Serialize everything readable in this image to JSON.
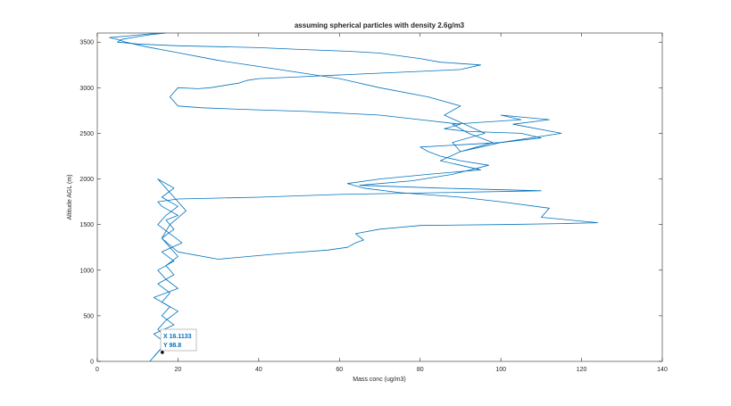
{
  "chart_data": {
    "type": "line",
    "title": "assuming spherical particles with density 2.6g/m3",
    "xlabel": "Mass conc (ug/m3)",
    "ylabel": "Altitude AGL (m)",
    "xlim": [
      0,
      140
    ],
    "ylim": [
      0,
      3600
    ],
    "xticks": [
      0,
      20,
      40,
      60,
      80,
      100,
      120,
      140
    ],
    "yticks": [
      0,
      500,
      1000,
      1500,
      2000,
      2500,
      3000,
      3500
    ],
    "grid": false,
    "line_color": "#0072BD",
    "series": [
      {
        "x": [
          13,
          15,
          17,
          14,
          19,
          16,
          18,
          14,
          20,
          17,
          15,
          19,
          16,
          21,
          18,
          15,
          17,
          20,
          16,
          19,
          15,
          17,
          19,
          22,
          18,
          16,
          20,
          30,
          45,
          57,
          62,
          64,
          66,
          64,
          70,
          80,
          100,
          115,
          124,
          110,
          112,
          100,
          90,
          75,
          66,
          62,
          70,
          82,
          95,
          85,
          90,
          98,
          92,
          88,
          105,
          100,
          112,
          103,
          115,
          100,
          95,
          90,
          88,
          96,
          86,
          90,
          82,
          70,
          60,
          45,
          30,
          18,
          12,
          7,
          5,
          3,
          8,
          13,
          17
        ],
        "y": [
          0,
          100,
          200,
          300,
          400,
          500,
          600,
          700,
          800,
          900,
          1000,
          1100,
          1200,
          1300,
          1400,
          1500,
          1600,
          1700,
          1800,
          1900,
          2000,
          1900,
          1800,
          1650,
          1500,
          1350,
          1200,
          1120,
          1180,
          1220,
          1250,
          1300,
          1330,
          1400,
          1450,
          1490,
          1500,
          1510,
          1520,
          1580,
          1680,
          1750,
          1800,
          1850,
          1900,
          1950,
          2000,
          2050,
          2100,
          2200,
          2300,
          2400,
          2500,
          2600,
          2650,
          2700,
          2650,
          2600,
          2500,
          2400,
          2350,
          2300,
          2400,
          2500,
          2700,
          2800,
          2900,
          3000,
          3100,
          3200,
          3300,
          3400,
          3450,
          3500,
          3530,
          3550,
          3570,
          3590,
          3600
        ]
      },
      {
        "x": [
          14,
          16,
          18,
          15,
          17,
          20,
          16,
          18,
          15,
          19,
          17,
          20,
          18,
          16,
          19,
          17,
          20,
          18,
          16,
          15,
          20,
          40,
          60,
          85,
          110,
          85,
          65,
          78,
          88,
          97,
          90,
          85,
          82,
          80,
          100,
          110,
          105,
          92,
          86,
          90,
          80,
          70,
          52,
          38,
          26,
          20,
          18,
          20,
          25,
          28,
          35,
          37,
          40,
          50,
          65,
          75,
          90,
          95,
          85,
          80,
          75,
          70,
          62,
          50,
          40,
          30,
          20,
          10,
          5,
          6,
          10,
          13,
          17
        ],
        "y": [
          50,
          150,
          250,
          350,
          450,
          550,
          650,
          750,
          850,
          950,
          1050,
          1150,
          1250,
          1350,
          1450,
          1550,
          1600,
          1650,
          1700,
          1750,
          1780,
          1800,
          1830,
          1850,
          1870,
          1900,
          1930,
          1980,
          2050,
          2150,
          2200,
          2250,
          2300,
          2350,
          2400,
          2450,
          2500,
          2520,
          2550,
          2600,
          2650,
          2700,
          2740,
          2760,
          2780,
          2800,
          2900,
          3000,
          2990,
          3000,
          3050,
          3080,
          3100,
          3120,
          3150,
          3170,
          3200,
          3250,
          3280,
          3320,
          3350,
          3380,
          3400,
          3420,
          3440,
          3450,
          3460,
          3480,
          3500,
          3530,
          3560,
          3580,
          3600
        ]
      }
    ],
    "datatip": {
      "x_label": "X 16.1133",
      "y_label": "Y 98.8",
      "x": 16.1133,
      "y": 98.8
    }
  }
}
